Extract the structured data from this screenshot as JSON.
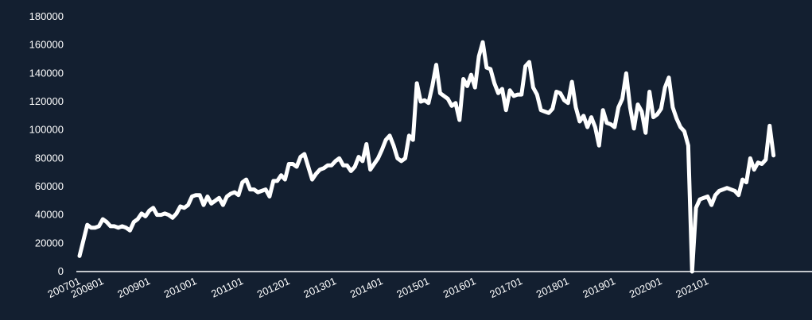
{
  "chart_data": {
    "type": "line",
    "title": "",
    "xlabel": "",
    "ylabel": "",
    "ylim": [
      0,
      180000
    ],
    "y_ticks": [
      0,
      20000,
      40000,
      60000,
      80000,
      100000,
      120000,
      140000,
      160000,
      180000
    ],
    "x_tick_labels": [
      "200701",
      "200801",
      "200901",
      "201001",
      "201101",
      "201201",
      "201301",
      "201401",
      "201501",
      "201601",
      "201701",
      "201801",
      "201901",
      "202001",
      "202101"
    ],
    "grid": false,
    "legend": "none",
    "colors": {
      "background": "#131f30",
      "line": "#ffffff",
      "text": "#ffffff"
    },
    "x_start": "2007-07",
    "x_frequency": "monthly",
    "series": [
      {
        "values": [
          11000,
          22000,
          33000,
          31000,
          31000,
          32000,
          37000,
          35000,
          32000,
          32000,
          31000,
          32000,
          31000,
          29000,
          35000,
          37000,
          41000,
          39000,
          43000,
          45000,
          40000,
          40000,
          41000,
          40000,
          38000,
          41000,
          46000,
          45000,
          47000,
          53000,
          54000,
          54000,
          47000,
          53000,
          48000,
          50000,
          52000,
          47000,
          53000,
          55000,
          56000,
          54000,
          63000,
          65000,
          58000,
          58000,
          56000,
          57000,
          58000,
          53000,
          64000,
          64000,
          68000,
          65000,
          76000,
          76000,
          74000,
          81000,
          83000,
          74000,
          65000,
          69000,
          72000,
          73000,
          75000,
          75000,
          78000,
          80000,
          75000,
          75000,
          71000,
          74000,
          81000,
          78000,
          90000,
          72000,
          76000,
          80000,
          86000,
          93000,
          96000,
          89000,
          80000,
          78000,
          80000,
          96000,
          93000,
          133000,
          120000,
          121000,
          119000,
          131000,
          146000,
          126000,
          124000,
          122000,
          117000,
          119000,
          107000,
          136000,
          131000,
          139000,
          130000,
          152000,
          162000,
          144000,
          143000,
          133000,
          126000,
          129000,
          114000,
          128000,
          124000,
          125000,
          125000,
          145000,
          148000,
          130000,
          125000,
          114000,
          113000,
          112000,
          115000,
          127000,
          126000,
          121000,
          119000,
          134000,
          116000,
          106000,
          110000,
          102000,
          109000,
          102000,
          89000,
          114000,
          105000,
          104000,
          102000,
          116000,
          122000,
          140000,
          116000,
          101000,
          118000,
          113000,
          98000,
          127000,
          109000,
          111000,
          115000,
          130000,
          137000,
          116000,
          108000,
          102000,
          99000,
          89000,
          0,
          45000,
          51000,
          52000,
          53000,
          47000,
          54000,
          57000,
          58000,
          59000,
          58000,
          57000,
          54000,
          65000,
          63000,
          80000,
          72000,
          77000,
          76000,
          79000,
          103000,
          82000
        ]
      }
    ]
  }
}
